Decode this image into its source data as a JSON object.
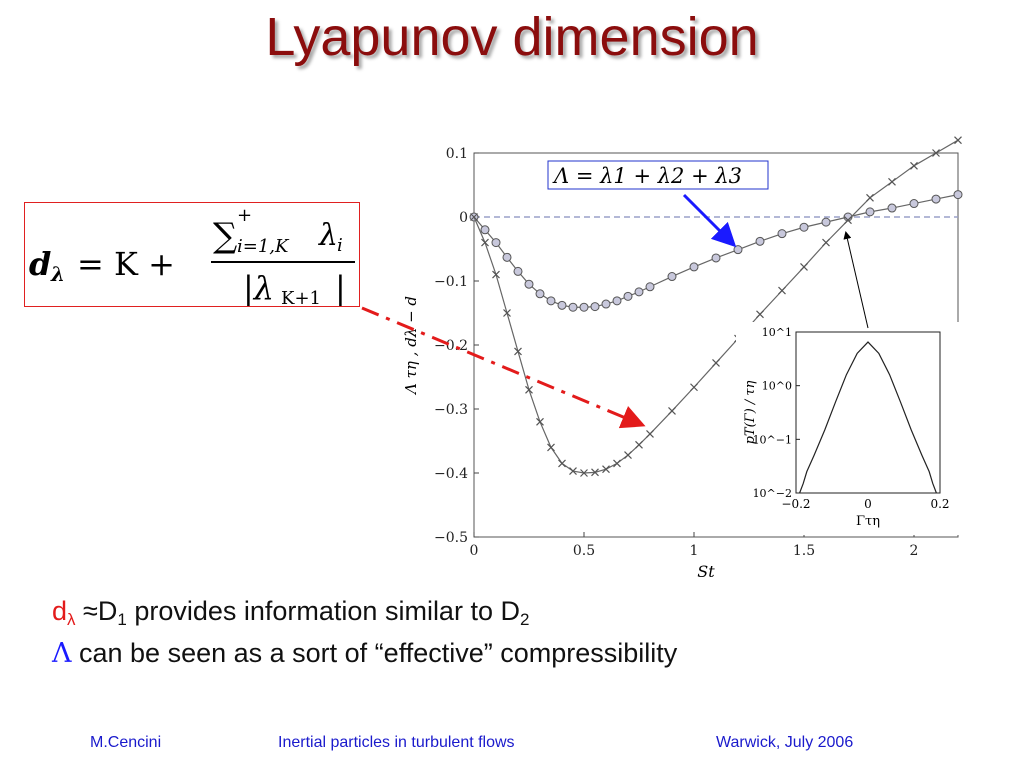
{
  "slide": {
    "title": "Lyapunov dimension",
    "formula": {
      "lhs": "d",
      "lhs_sub": "λ",
      "equals": "= K +",
      "numerator_sum": "∑",
      "numerator_sup": "+",
      "numerator_sub": "i=1,K",
      "numerator_term": "λ",
      "numerator_term_sub": "i",
      "denominator": "|λ",
      "denominator_sub": "K+1",
      "denominator_close": "|"
    },
    "bullets": [
      {
        "symbol": "d",
        "symbol_sub": "λ",
        "approx": " ≈D",
        "approx_sub": "1",
        "text": " provides  information similar to D",
        "text_sub": "2"
      },
      {
        "symbol": "Λ",
        "text": " can be seen as a sort of “effective” compressibility"
      }
    ],
    "footer": {
      "author": "M.Cencini",
      "talk": "Inertial particles in turbulent flows",
      "event": "Warwick, July 2006"
    },
    "colors": {
      "title": "#8b0d0d",
      "accent_red": "#e31b1b",
      "accent_blue": "#1a1aff",
      "footer": "#1a1acc"
    }
  },
  "chart_data": [
    {
      "type": "line",
      "xlabel": "St",
      "ylabel": "Λ τη , dλ − d",
      "xlim": [
        0,
        2.2
      ],
      "ylim": [
        -0.5,
        0.1
      ],
      "xticks": [
        "0",
        "0.5",
        "1",
        "1.5",
        "2"
      ],
      "yticks": [
        "0.1",
        "0",
        "−0.1",
        "−0.2",
        "−0.3",
        "−0.4",
        "−0.5"
      ],
      "reference_line": 0,
      "annotation": "Λ = λ1 + λ2 + λ3",
      "series": [
        {
          "name": "Λ = λ1 + λ2 + λ3",
          "marker": "circle",
          "x": [
            0,
            0.05,
            0.1,
            0.15,
            0.2,
            0.25,
            0.3,
            0.35,
            0.4,
            0.45,
            0.5,
            0.55,
            0.6,
            0.65,
            0.7,
            0.75,
            0.8,
            0.9,
            1.0,
            1.1,
            1.2,
            1.3,
            1.4,
            1.5,
            1.6,
            1.7,
            1.8,
            1.9,
            2.0,
            2.1,
            2.2
          ],
          "y": [
            0,
            -0.02,
            -0.04,
            -0.063,
            -0.085,
            -0.105,
            -0.12,
            -0.131,
            -0.138,
            -0.141,
            -0.141,
            -0.14,
            -0.136,
            -0.131,
            -0.124,
            -0.117,
            -0.109,
            -0.093,
            -0.078,
            -0.064,
            -0.051,
            -0.038,
            -0.026,
            -0.016,
            -0.008,
            0,
            0.008,
            0.014,
            0.021,
            0.028,
            0.035
          ]
        },
        {
          "name": "",
          "marker": "x",
          "x": [
            0,
            0.05,
            0.1,
            0.15,
            0.2,
            0.25,
            0.3,
            0.35,
            0.4,
            0.45,
            0.5,
            0.55,
            0.6,
            0.65,
            0.7,
            0.75,
            0.8,
            0.9,
            1.0,
            1.1,
            1.2,
            1.3,
            1.4,
            1.5,
            1.6,
            1.7,
            1.8,
            1.9,
            2.0,
            2.1,
            2.2
          ],
          "y": [
            0,
            -0.04,
            -0.09,
            -0.15,
            -0.21,
            -0.27,
            -0.32,
            -0.36,
            -0.385,
            -0.397,
            -0.4,
            -0.399,
            -0.394,
            -0.385,
            -0.372,
            -0.356,
            -0.339,
            -0.303,
            -0.266,
            -0.228,
            -0.19,
            -0.152,
            -0.115,
            -0.078,
            -0.04,
            -0.005,
            0.03,
            0.055,
            0.08,
            0.1,
            0.12
          ]
        }
      ]
    },
    {
      "type": "line",
      "xlabel": "Γτη",
      "ylabel": "pT(Γ) / τη",
      "xlim": [
        -0.2,
        0.2
      ],
      "yscale": "log",
      "ylim": [
        0.01,
        10
      ],
      "xticks": [
        "−0.2",
        "0",
        "0.2"
      ],
      "yticks": [
        "10^1",
        "10^0",
        "10^−1",
        "10^−2"
      ],
      "series": [
        {
          "name": "",
          "x": [
            -0.19,
            -0.18,
            -0.17,
            -0.15,
            -0.12,
            -0.09,
            -0.06,
            -0.03,
            0,
            0.03,
            0.06,
            0.09,
            0.12,
            0.15,
            0.17,
            0.18,
            0.19
          ],
          "y": [
            0.01,
            0.015,
            0.025,
            0.05,
            0.15,
            0.5,
            1.6,
            4.0,
            6.5,
            4.0,
            1.6,
            0.5,
            0.15,
            0.05,
            0.025,
            0.015,
            0.01
          ]
        }
      ]
    }
  ]
}
